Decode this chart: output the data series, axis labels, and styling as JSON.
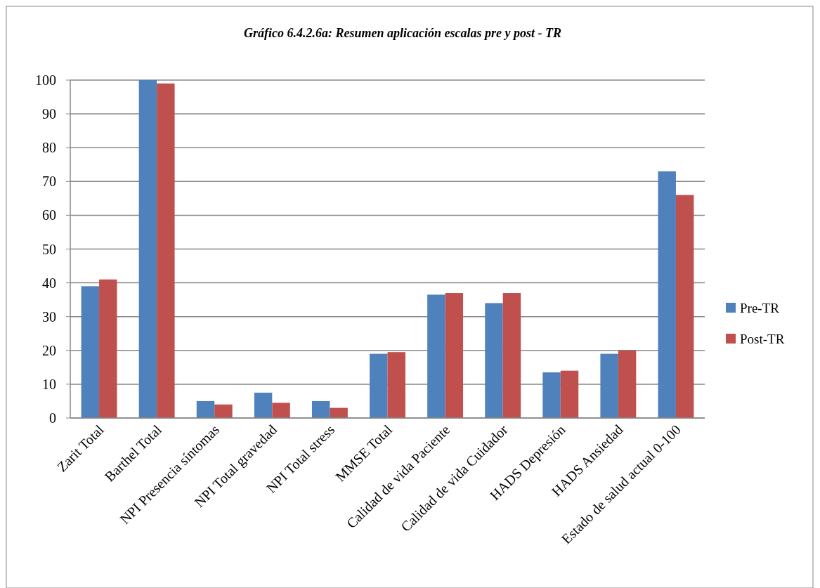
{
  "chart_data": {
    "type": "bar",
    "title": "Gráfico 6.4.2.6a: Resumen aplicación escalas pre y post - TR",
    "categories": [
      "Zarit Total",
      "Barthel Total",
      "NPI Presencia síntomas",
      "NPI Total gravedad",
      "NPI Total stress",
      "MMSE Total",
      "Calidad de vida Paciente",
      "Calidad de vida Cuidador",
      "HADS Depresión",
      "HADS Ansiedad",
      "Estado de salud actual 0-100"
    ],
    "series": [
      {
        "name": "Pre-TR",
        "color": "#4f81bd",
        "values": [
          39,
          100,
          5,
          7.5,
          5,
          19,
          36.5,
          34,
          13.5,
          19,
          73
        ]
      },
      {
        "name": "Post-TR",
        "color": "#c0504d",
        "values": [
          41,
          99,
          4,
          4.5,
          3,
          19.5,
          37,
          37,
          14,
          20,
          66
        ]
      }
    ],
    "ylim": [
      0,
      100
    ],
    "yticks": [
      0,
      10,
      20,
      30,
      40,
      50,
      60,
      70,
      80,
      90,
      100
    ],
    "grid": "y",
    "legend": "right"
  }
}
